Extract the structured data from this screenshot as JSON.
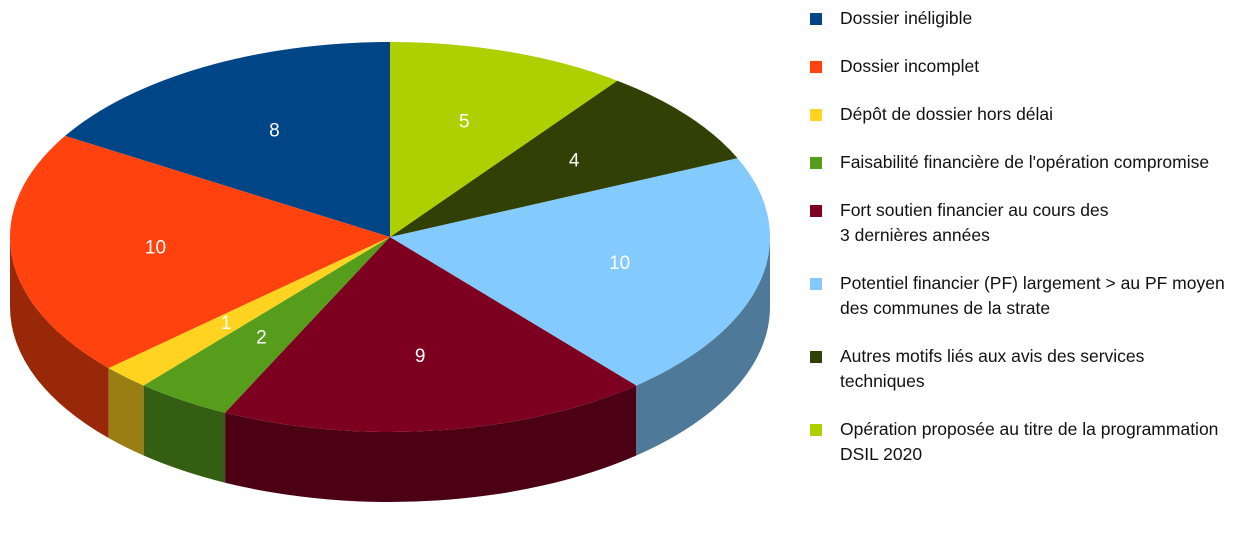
{
  "chart_data": {
    "type": "pie",
    "categories": [
      "Dossier inéligible",
      "Dossier incomplet",
      "Dépôt de dossier hors délai",
      "Faisabilité financière de l'opération compromise",
      "Fort soutien financier au cours des 3 dernières années",
      "Potentiel financier (PF) largement > au PF moyen des communes de la strate",
      "Autres motifs liés aux avis des services techniques",
      "Opération proposée au titre de la programmation DSIL 2020"
    ],
    "values": [
      8,
      10,
      1,
      2,
      9,
      10,
      4,
      5
    ],
    "colors": [
      "#004586",
      "#ff420e",
      "#ffd320",
      "#579d1c",
      "#7e0021",
      "#83caff",
      "#314004",
      "#aecf00"
    ]
  }
}
